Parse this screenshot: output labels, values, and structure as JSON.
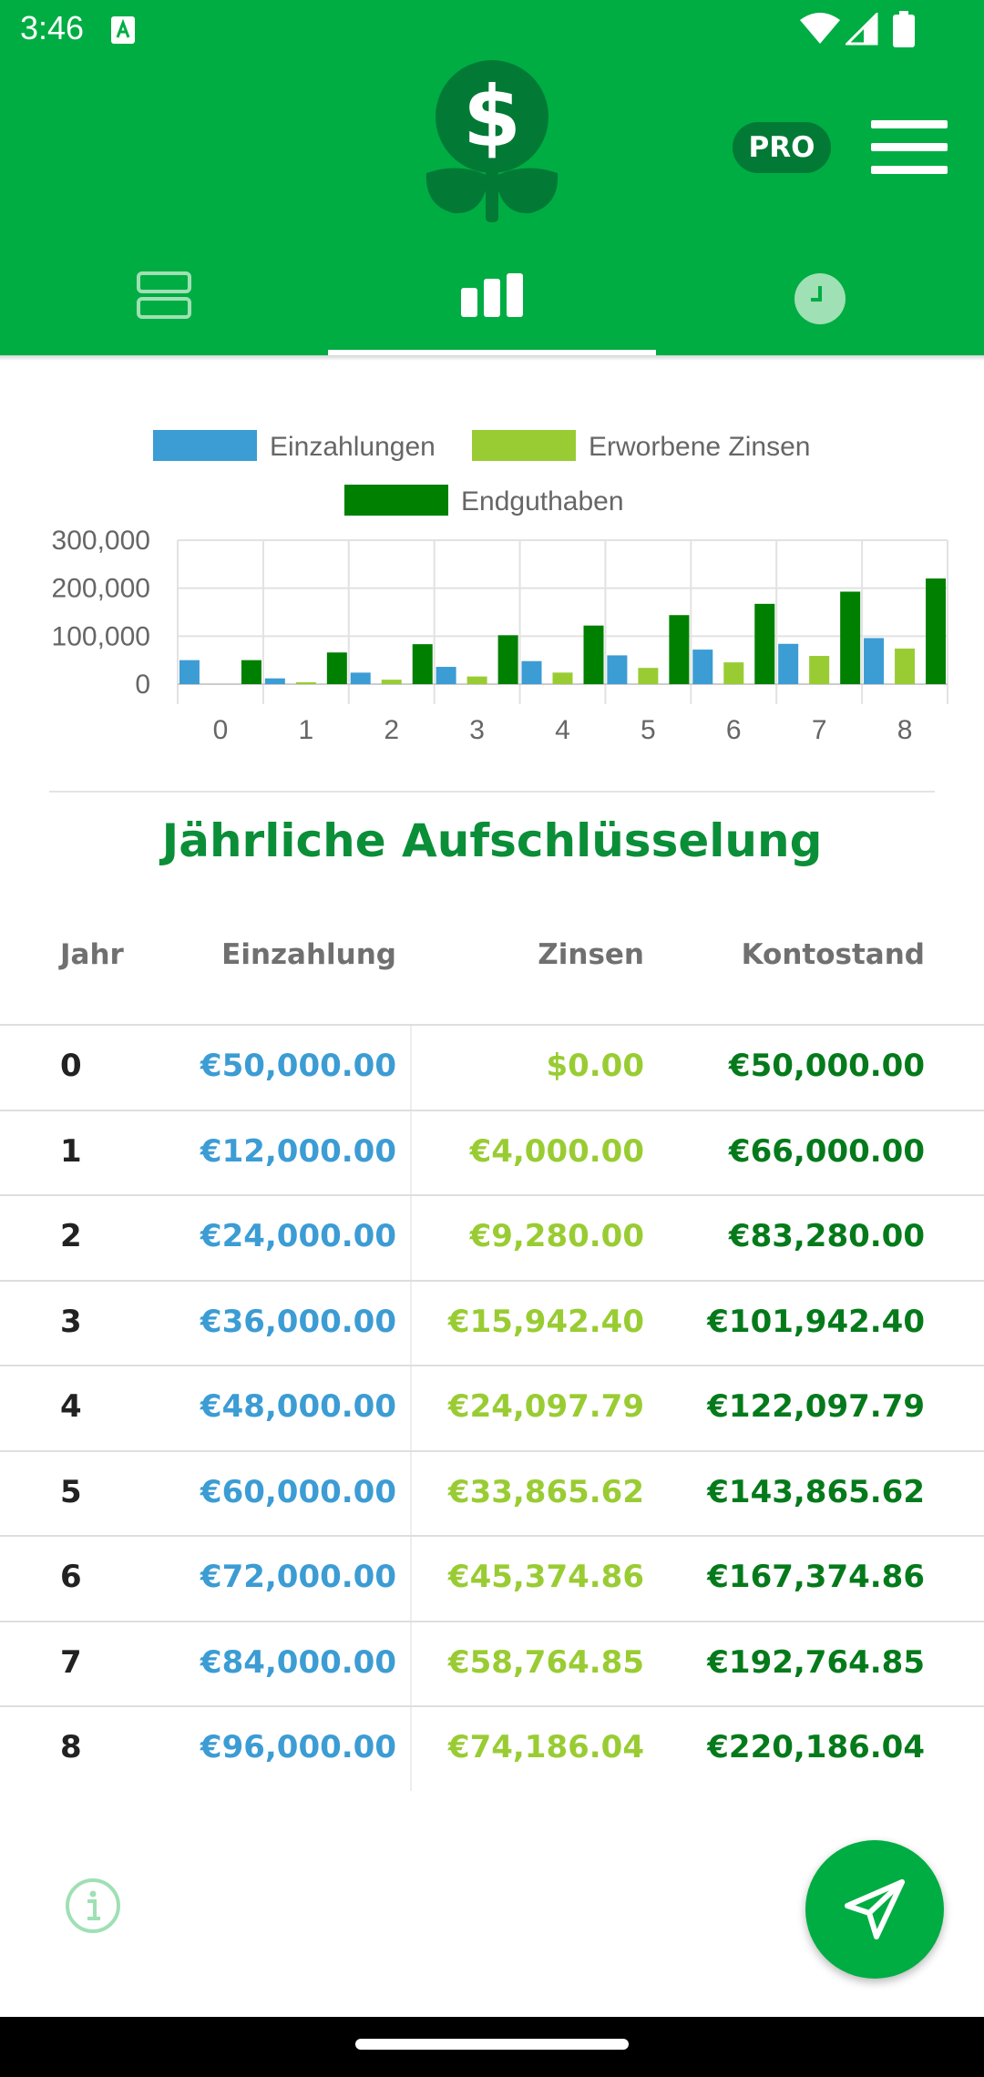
{
  "status_bar": {
    "time": "3:46"
  },
  "header": {
    "pro_label": "PRO",
    "colors": {
      "primary": "#00ad43",
      "pro_badge": "#027a35"
    },
    "tabs": [
      {
        "icon": "list-icon",
        "active": false
      },
      {
        "icon": "bar-chart-icon",
        "active": true
      },
      {
        "icon": "clock-icon",
        "active": false
      }
    ]
  },
  "chart_data": {
    "type": "bar",
    "categories": [
      "0",
      "1",
      "2",
      "3",
      "4",
      "5",
      "6",
      "7",
      "8"
    ],
    "series": [
      {
        "name": "Einzahlungen",
        "color": "#3c9cd4",
        "values": [
          50000,
          12000,
          24000,
          36000,
          48000,
          60000,
          72000,
          84000,
          96000
        ]
      },
      {
        "name": "Erworbene Zinsen",
        "color": "#99cc33",
        "values": [
          0,
          4000,
          9280,
          15942.4,
          24097.79,
          33865.62,
          45374.86,
          58764.85,
          74186.04
        ]
      },
      {
        "name": "Endguthaben",
        "color": "#008000",
        "values": [
          50000,
          66000,
          83280,
          101942.4,
          122097.79,
          143865.62,
          167374.86,
          192764.85,
          220186.04
        ]
      }
    ],
    "yticks": [
      "300,000",
      "200,000",
      "100,000",
      "0"
    ],
    "ylim": [
      0,
      300000
    ],
    "grid": true,
    "legend_position": "top"
  },
  "breakdown": {
    "title": "Jährliche Aufschlüsselung",
    "headers": {
      "year": "Jahr",
      "deposit": "Einzahlung",
      "interest": "Zinsen",
      "balance": "Kontostand"
    },
    "rows": [
      {
        "year": "0",
        "deposit": "€50,000.00",
        "interest": "$0.00",
        "balance": "€50,000.00"
      },
      {
        "year": "1",
        "deposit": "€12,000.00",
        "interest": "€4,000.00",
        "balance": "€66,000.00"
      },
      {
        "year": "2",
        "deposit": "€24,000.00",
        "interest": "€9,280.00",
        "balance": "€83,280.00"
      },
      {
        "year": "3",
        "deposit": "€36,000.00",
        "interest": "€15,942.40",
        "balance": "€101,942.40"
      },
      {
        "year": "4",
        "deposit": "€48,000.00",
        "interest": "€24,097.79",
        "balance": "€122,097.79"
      },
      {
        "year": "5",
        "deposit": "€60,000.00",
        "interest": "€33,865.62",
        "balance": "€143,865.62"
      },
      {
        "year": "6",
        "deposit": "€72,000.00",
        "interest": "€45,374.86",
        "balance": "€167,374.86"
      },
      {
        "year": "7",
        "deposit": "€84,000.00",
        "interest": "€58,764.85",
        "balance": "€192,764.85"
      },
      {
        "year": "8",
        "deposit": "€96,000.00",
        "interest": "€74,186.04",
        "balance": "€220,186.04"
      }
    ]
  },
  "footer": {
    "info_icon": "info-icon",
    "fab_icon": "send-icon"
  }
}
